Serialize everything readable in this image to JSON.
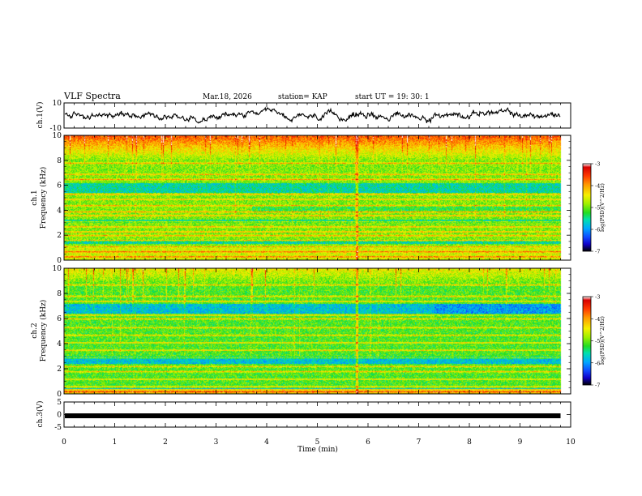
{
  "header": {
    "title": "VLF Spectra",
    "date": "Mar.18, 2026",
    "station": "station= KAP",
    "start": "start  UT =   19: 30: 1"
  },
  "chart_data": [
    {
      "type": "line",
      "name": "ch1-waveform",
      "ylabel": "ch.1(V)",
      "ylim": [
        -10,
        10
      ],
      "yticks": [
        "10",
        "-10"
      ],
      "xlim": [
        0,
        10
      ],
      "x_end": 9.8,
      "y_range_estimate": [
        -6,
        6
      ]
    },
    {
      "type": "heatmap",
      "name": "ch1-spectrogram",
      "ylabel_top": "ch.1",
      "ylabel": "Frequency (kHz)",
      "ylim": [
        0,
        10
      ],
      "yticks": [
        "0",
        "2",
        "4",
        "6",
        "8",
        "10"
      ],
      "xlim": [
        0,
        10
      ],
      "x_end": 9.8,
      "colorbar": {
        "label": "log(PSD)(V^2/Hz)",
        "ticks": [
          "-3",
          "-4",
          "-5",
          "-6",
          "-7"
        ],
        "range": [
          -7,
          -3
        ]
      },
      "strong_lines_khz": [
        0.3,
        0.7,
        1.1,
        1.6,
        2.0,
        2.3,
        2.7,
        3.1,
        3.6,
        3.9,
        4.4,
        4.9,
        5.3,
        6.5,
        6.9,
        7.8
      ],
      "deep_blue_bands_khz": [
        [
          5.4,
          6.2
        ],
        [
          3.0,
          3.3
        ],
        [
          1.3,
          1.6
        ]
      ]
    },
    {
      "type": "heatmap",
      "name": "ch2-spectrogram",
      "ylabel_top": "ch.2",
      "ylabel": "Frequency (kHz)",
      "ylim": [
        0,
        10
      ],
      "yticks": [
        "0",
        "2",
        "4",
        "6",
        "8",
        "10"
      ],
      "xlim": [
        0,
        10
      ],
      "x_end": 9.8,
      "colorbar": {
        "label": "log(PSD)(V^2/Hz)",
        "ticks": [
          "-3",
          "-4",
          "-5",
          "-6",
          "-7"
        ],
        "range": [
          -7,
          -3
        ]
      },
      "strong_lines_khz": [
        0.2,
        0.6,
        1.2,
        1.8,
        2.2,
        2.9,
        3.5,
        4.1,
        4.7,
        5.3,
        6.0,
        6.3,
        7.4,
        7.8,
        8.7
      ],
      "deep_blue_bands_khz": [
        [
          6.4,
          7.2
        ],
        [
          2.4,
          3.0
        ],
        [
          0.4,
          0.5
        ]
      ]
    },
    {
      "type": "line",
      "name": "ch3-waveform",
      "ylabel": "ch.3(V)",
      "ylim": [
        -5,
        5
      ],
      "yticks": [
        "5",
        "0",
        "-5"
      ],
      "xlim": [
        0,
        10
      ],
      "x_end": 9.8,
      "constant_level": -0.5
    }
  ],
  "x_axis": {
    "label": "Time (min)",
    "ticks": [
      "0",
      "1",
      "2",
      "3",
      "4",
      "5",
      "6",
      "7",
      "8",
      "9",
      "10"
    ],
    "range": [
      0,
      10
    ]
  },
  "colors": {
    "ink": "#000000",
    "background": "#ffffff"
  }
}
